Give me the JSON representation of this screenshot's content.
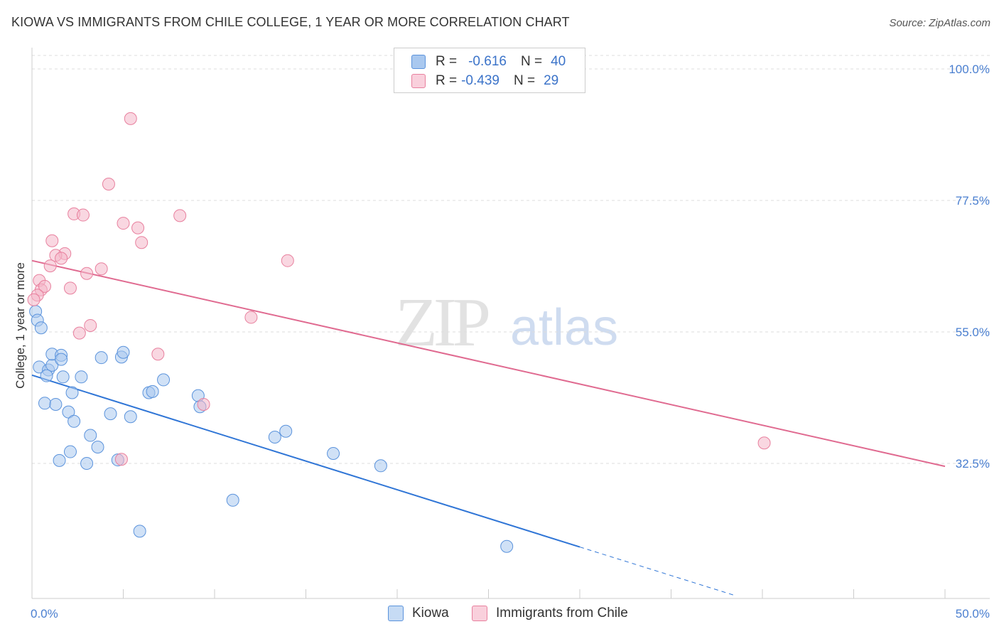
{
  "header": {
    "title": "KIOWA VS IMMIGRANTS FROM CHILE COLLEGE, 1 YEAR OR MORE CORRELATION CHART",
    "source": "Source: ZipAtlas.com"
  },
  "watermark": {
    "part1": "ZIP",
    "part2": "atlas"
  },
  "legend_top": {
    "rows": [
      {
        "r_label": "R =",
        "r_value": "-0.616",
        "n_label": "N =",
        "n_value": "40",
        "color": "#a9c8ef"
      },
      {
        "r_label": "R =",
        "r_value": "-0.439",
        "n_label": "N =",
        "n_value": "29",
        "color": "#f4b6c8"
      }
    ]
  },
  "legend_bottom": {
    "items": [
      {
        "label": "Kiowa",
        "color": "#a9c8ef"
      },
      {
        "label": "Immigrants from Chile",
        "color": "#f4b6c8"
      }
    ]
  },
  "chart_data": {
    "type": "scatter",
    "title": "KIOWA VS IMMIGRANTS FROM CHILE COLLEGE, 1 YEAR OR MORE CORRELATION CHART",
    "xlabel": "",
    "ylabel": "College, 1 year or more",
    "xlim": [
      0,
      50
    ],
    "ylim": [
      13,
      102
    ],
    "x_tick_labels": [
      "0.0%",
      "50.0%"
    ],
    "y_ticks": [
      32.5,
      55.0,
      77.5,
      100.0
    ],
    "y_tick_labels": [
      "32.5%",
      "55.0%",
      "77.5%",
      "100.0%"
    ],
    "grid": true,
    "series": [
      {
        "name": "Kiowa",
        "color": "#5b93dc",
        "fill": "#a9c8ef",
        "points": [
          [
            0.2,
            58.5
          ],
          [
            0.3,
            57.0
          ],
          [
            0.5,
            55.7
          ],
          [
            0.4,
            49.0
          ],
          [
            0.9,
            48.5
          ],
          [
            1.1,
            49.3
          ],
          [
            0.8,
            47.5
          ],
          [
            1.1,
            51.2
          ],
          [
            1.6,
            51.0
          ],
          [
            1.6,
            50.3
          ],
          [
            1.7,
            47.3
          ],
          [
            3.8,
            50.6
          ],
          [
            4.9,
            50.7
          ],
          [
            5.0,
            51.5
          ],
          [
            0.7,
            42.8
          ],
          [
            1.3,
            42.6
          ],
          [
            2.2,
            44.6
          ],
          [
            2.7,
            47.3
          ],
          [
            2.0,
            41.3
          ],
          [
            2.3,
            39.7
          ],
          [
            4.3,
            41.0
          ],
          [
            5.4,
            40.5
          ],
          [
            6.4,
            44.6
          ],
          [
            6.6,
            44.8
          ],
          [
            7.2,
            46.8
          ],
          [
            9.1,
            44.1
          ],
          [
            9.2,
            42.2
          ],
          [
            3.2,
            37.3
          ],
          [
            3.6,
            35.3
          ],
          [
            2.1,
            34.5
          ],
          [
            1.5,
            33.0
          ],
          [
            3.0,
            32.5
          ],
          [
            4.7,
            33.1
          ],
          [
            13.3,
            37.0
          ],
          [
            13.9,
            38.0
          ],
          [
            16.5,
            34.2
          ],
          [
            19.1,
            32.1
          ],
          [
            11.0,
            26.2
          ],
          [
            5.9,
            20.9
          ],
          [
            26.0,
            18.3
          ]
        ]
      },
      {
        "name": "Immigrants from Chile",
        "color": "#e8809e",
        "fill": "#f4b6c8",
        "points": [
          [
            5.4,
            91.5
          ],
          [
            4.2,
            80.3
          ],
          [
            2.3,
            75.2
          ],
          [
            2.8,
            75.0
          ],
          [
            8.1,
            74.9
          ],
          [
            5.0,
            73.6
          ],
          [
            5.8,
            72.8
          ],
          [
            6.0,
            70.3
          ],
          [
            1.1,
            70.6
          ],
          [
            1.8,
            68.4
          ],
          [
            1.3,
            68.1
          ],
          [
            1.6,
            67.6
          ],
          [
            14.0,
            67.2
          ],
          [
            1.0,
            66.3
          ],
          [
            3.8,
            65.8
          ],
          [
            3.0,
            65.0
          ],
          [
            0.4,
            63.8
          ],
          [
            0.5,
            62.2
          ],
          [
            0.7,
            62.8
          ],
          [
            2.1,
            62.5
          ],
          [
            0.3,
            61.3
          ],
          [
            0.1,
            60.5
          ],
          [
            12.0,
            57.5
          ],
          [
            3.2,
            56.1
          ],
          [
            2.6,
            54.8
          ],
          [
            6.9,
            51.2
          ],
          [
            9.4,
            42.6
          ],
          [
            4.9,
            33.2
          ],
          [
            40.1,
            36.0
          ]
        ]
      }
    ],
    "trend_lines": [
      {
        "series": "Kiowa",
        "x0": 0,
        "y0": 47.6,
        "x1": 30,
        "y1": 18.2,
        "dashed_to_x": 38.5,
        "dashed_to_y": 9.9
      },
      {
        "series": "Immigrants from Chile",
        "x0": 0,
        "y0": 67.2,
        "x1": 50,
        "y1": 32.0
      }
    ]
  }
}
